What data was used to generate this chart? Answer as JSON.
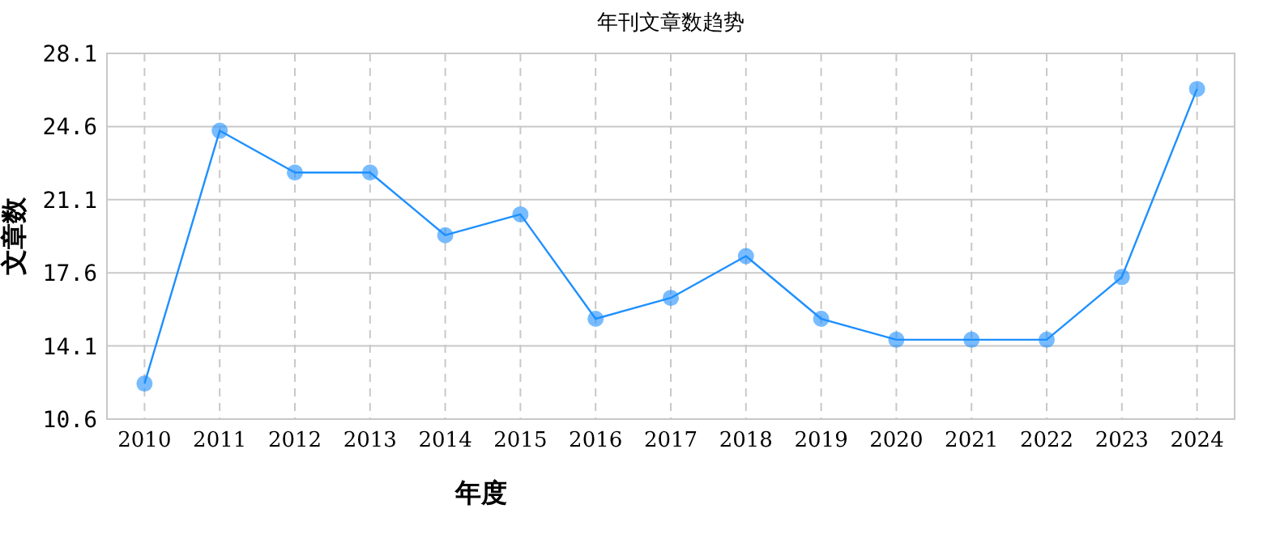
{
  "chart_data": {
    "type": "line",
    "title": "年刊文章数趋势",
    "xlabel": "年度",
    "ylabel": "文章数",
    "categories": [
      "2010",
      "2011",
      "2012",
      "2013",
      "2014",
      "2015",
      "2016",
      "2017",
      "2018",
      "2019",
      "2020",
      "2021",
      "2022",
      "2023",
      "2024"
    ],
    "series": [
      {
        "color": "#1e90ff",
        "values": [
          12.3,
          24.4,
          22.4,
          22.4,
          19.4,
          20.4,
          15.4,
          16.4,
          18.4,
          15.4,
          14.4,
          14.4,
          14.4,
          17.4,
          26.4
        ]
      }
    ],
    "ylim": [
      10.6,
      28.1
    ],
    "yticks": [
      {
        "value": 10.6,
        "label": "10.6"
      },
      {
        "value": 14.1,
        "label": "14.1"
      },
      {
        "value": 17.6,
        "label": "17.6"
      },
      {
        "value": 21.1,
        "label": "21.1"
      },
      {
        "value": 24.6,
        "label": "24.6"
      },
      {
        "value": 28.1,
        "label": "28.1"
      }
    ],
    "grid": true,
    "marker": "circle",
    "line_style": "solid"
  }
}
